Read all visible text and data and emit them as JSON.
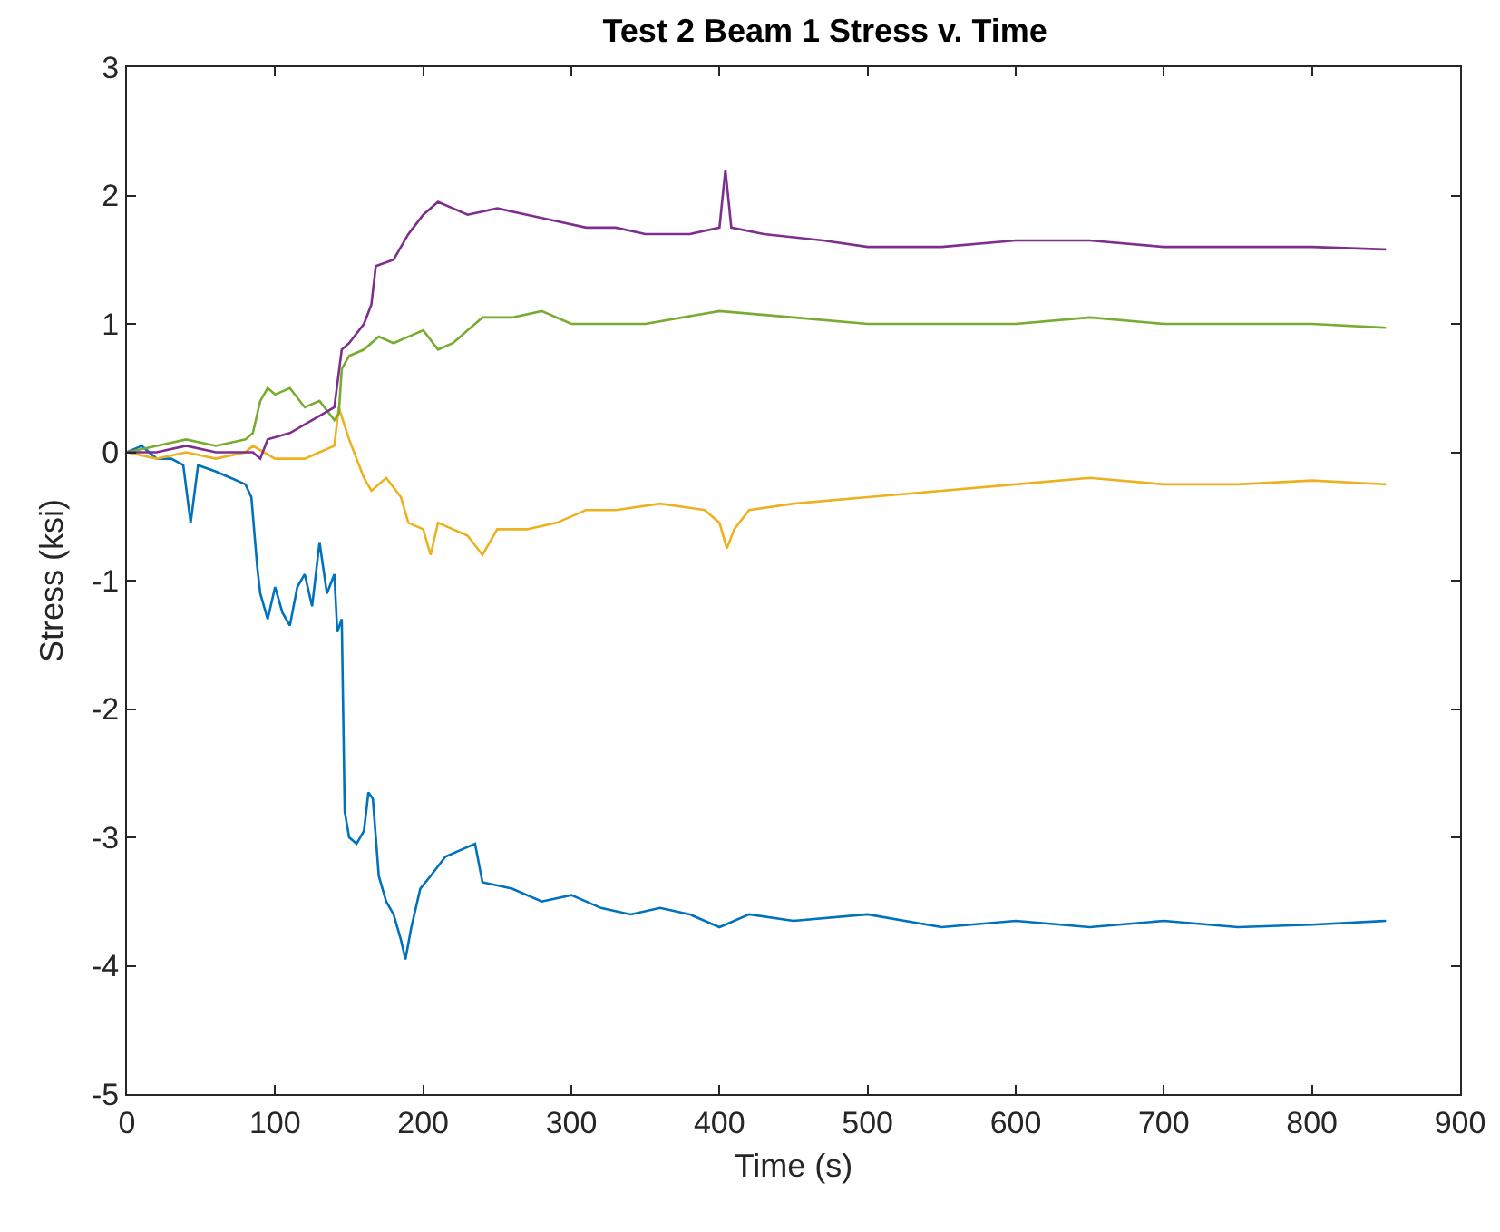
{
  "chart_data": {
    "type": "line",
    "title": "Test 2 Beam 1 Stress v. Time",
    "xlabel": "Time (s)",
    "ylabel": "Stress (ksi)",
    "xlim": [
      0,
      900
    ],
    "xticks": [
      0,
      100,
      200,
      300,
      400,
      500,
      600,
      700,
      800,
      900
    ],
    "ylim": [
      -5,
      3
    ],
    "yticks": [
      -5,
      -4,
      -3,
      -2,
      -1,
      0,
      1,
      2,
      3
    ],
    "marker": "none",
    "line_style": "solid",
    "series": [
      {
        "color": "#0072bd",
        "x": [
          0,
          10,
          20,
          30,
          38,
          43,
          48,
          60,
          70,
          80,
          84,
          88,
          90,
          95,
          100,
          105,
          110,
          115,
          120,
          125,
          130,
          135,
          140,
          142,
          145,
          147,
          150,
          155,
          160,
          163,
          166,
          170,
          175,
          180,
          185,
          188,
          192,
          198,
          205,
          215,
          225,
          235,
          240,
          260,
          280,
          300,
          320,
          340,
          360,
          380,
          400,
          420,
          450,
          500,
          550,
          600,
          650,
          700,
          750,
          800,
          850
        ],
        "values": [
          0.0,
          0.05,
          -0.05,
          -0.05,
          -0.1,
          -0.55,
          -0.1,
          -0.15,
          -0.2,
          -0.25,
          -0.35,
          -0.9,
          -1.1,
          -1.3,
          -1.05,
          -1.25,
          -1.35,
          -1.05,
          -0.95,
          -1.2,
          -0.7,
          -1.1,
          -0.95,
          -1.4,
          -1.3,
          -2.8,
          -3.0,
          -3.05,
          -2.95,
          -2.65,
          -2.7,
          -3.3,
          -3.5,
          -3.6,
          -3.8,
          -3.95,
          -3.7,
          -3.4,
          -3.3,
          -3.15,
          -3.1,
          -3.05,
          -3.35,
          -3.4,
          -3.5,
          -3.45,
          -3.55,
          -3.6,
          -3.55,
          -3.6,
          -3.7,
          -3.6,
          -3.65,
          -3.6,
          -3.7,
          -3.65,
          -3.7,
          -3.65,
          -3.7,
          -3.68,
          -3.65
        ]
      },
      {
        "color": "#edb120",
        "x": [
          0,
          20,
          40,
          60,
          80,
          85,
          100,
          120,
          130,
          140,
          143,
          150,
          160,
          165,
          175,
          185,
          190,
          200,
          205,
          210,
          220,
          230,
          240,
          250,
          270,
          290,
          310,
          330,
          360,
          390,
          400,
          405,
          410,
          420,
          450,
          500,
          550,
          600,
          650,
          700,
          750,
          800,
          850
        ],
        "values": [
          0.0,
          -0.05,
          0.0,
          -0.05,
          0.0,
          0.05,
          -0.05,
          -0.05,
          0.0,
          0.05,
          0.35,
          0.1,
          -0.2,
          -0.3,
          -0.2,
          -0.35,
          -0.55,
          -0.6,
          -0.8,
          -0.55,
          -0.6,
          -0.65,
          -0.8,
          -0.6,
          -0.6,
          -0.55,
          -0.45,
          -0.45,
          -0.4,
          -0.45,
          -0.55,
          -0.75,
          -0.6,
          -0.45,
          -0.4,
          -0.35,
          -0.3,
          -0.25,
          -0.2,
          -0.25,
          -0.25,
          -0.22,
          -0.25
        ]
      },
      {
        "color": "#77ac30",
        "x": [
          0,
          20,
          40,
          60,
          80,
          85,
          90,
          95,
          100,
          110,
          120,
          130,
          140,
          143,
          145,
          150,
          160,
          170,
          180,
          190,
          200,
          210,
          220,
          230,
          235,
          240,
          260,
          280,
          300,
          350,
          400,
          450,
          500,
          550,
          600,
          650,
          700,
          750,
          800,
          850
        ],
        "values": [
          0.0,
          0.05,
          0.1,
          0.05,
          0.1,
          0.15,
          0.4,
          0.5,
          0.45,
          0.5,
          0.35,
          0.4,
          0.25,
          0.3,
          0.65,
          0.75,
          0.8,
          0.9,
          0.85,
          0.9,
          0.95,
          0.8,
          0.85,
          0.95,
          1.0,
          1.05,
          1.05,
          1.1,
          1.0,
          1.0,
          1.1,
          1.05,
          1.0,
          1.0,
          1.0,
          1.05,
          1.0,
          1.0,
          1.0,
          0.97
        ]
      },
      {
        "color": "#7e2f8e",
        "x": [
          0,
          20,
          40,
          60,
          85,
          90,
          95,
          110,
          125,
          140,
          145,
          150,
          160,
          165,
          168,
          180,
          190,
          200,
          210,
          220,
          230,
          250,
          270,
          290,
          310,
          330,
          350,
          380,
          400,
          404,
          408,
          430,
          470,
          500,
          550,
          600,
          650,
          700,
          750,
          800,
          850
        ],
        "values": [
          0.0,
          0.0,
          0.05,
          0.0,
          0.0,
          -0.05,
          0.1,
          0.15,
          0.25,
          0.35,
          0.8,
          0.85,
          1.0,
          1.15,
          1.45,
          1.5,
          1.7,
          1.85,
          1.95,
          1.9,
          1.85,
          1.9,
          1.85,
          1.8,
          1.75,
          1.75,
          1.7,
          1.7,
          1.75,
          2.2,
          1.75,
          1.7,
          1.65,
          1.6,
          1.6,
          1.65,
          1.65,
          1.6,
          1.6,
          1.6,
          1.58
        ]
      }
    ]
  }
}
